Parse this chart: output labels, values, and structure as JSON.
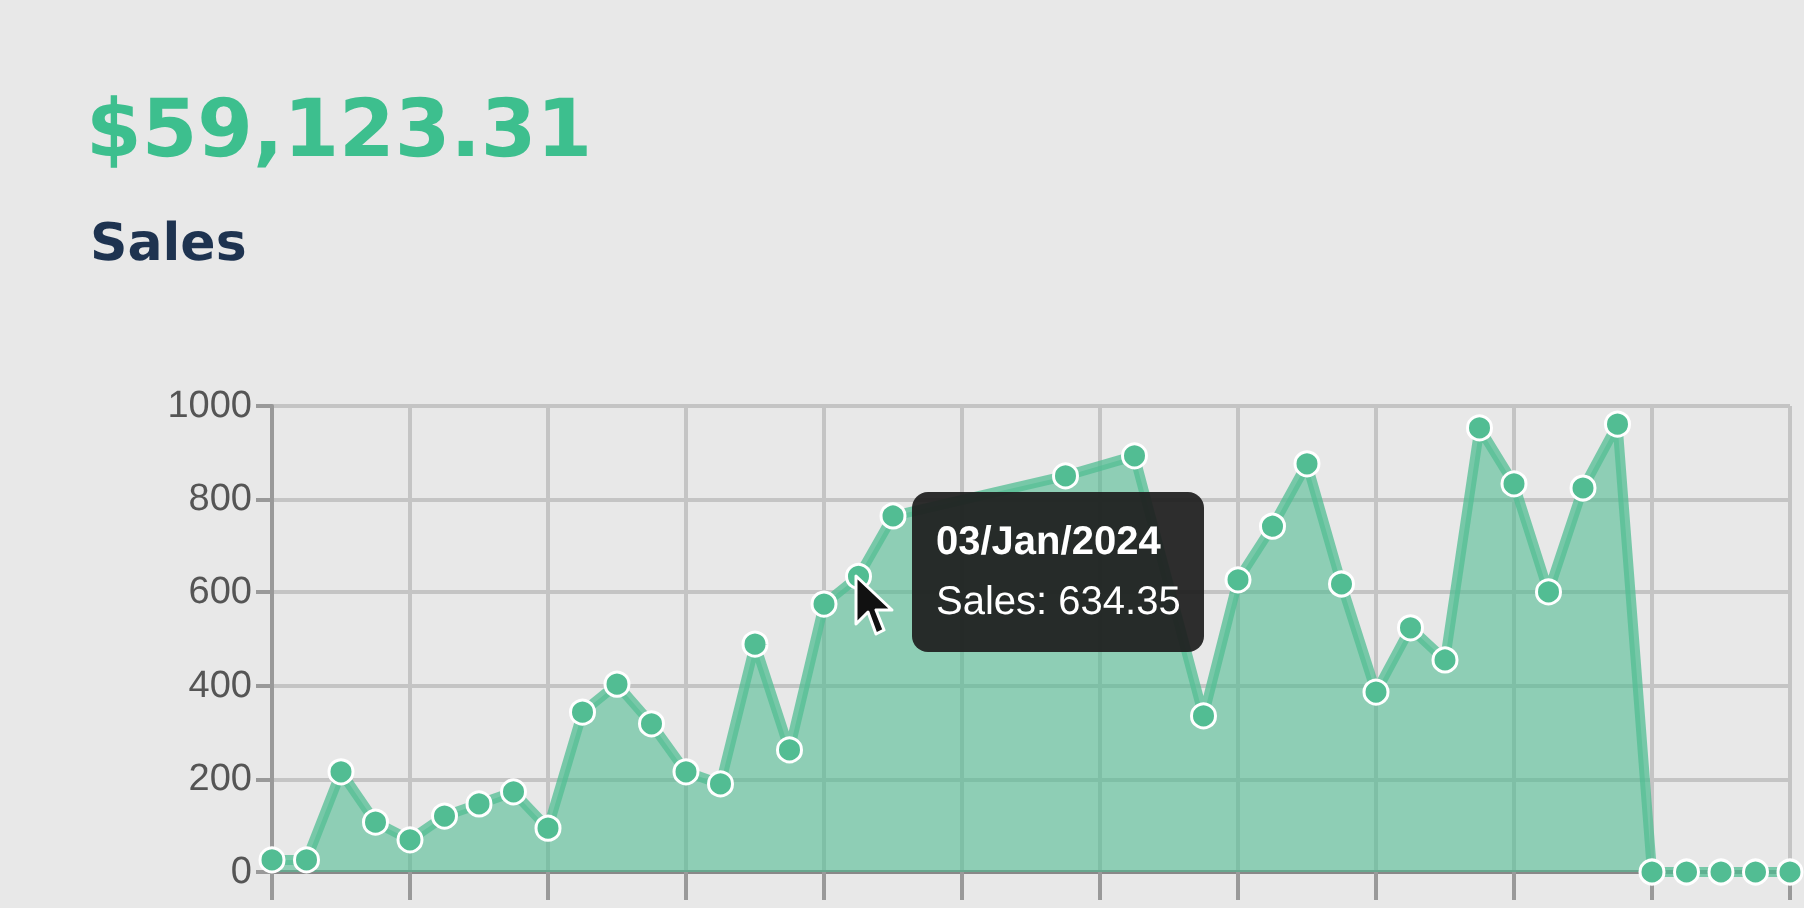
{
  "chart_data": {
    "type": "area",
    "title": "$59,123.31",
    "subtitle": "Sales",
    "categories": [
      null,
      null,
      null,
      null,
      null,
      null,
      null,
      null,
      null,
      null,
      null,
      null,
      null,
      null,
      null,
      null,
      null,
      null,
      null,
      null,
      null,
      null,
      null,
      null,
      null,
      null,
      null,
      null,
      null,
      null,
      null,
      null,
      null,
      null,
      null,
      null,
      null,
      null,
      null,
      null,
      null,
      null,
      null,
      null,
      null
    ],
    "series": [
      {
        "color": "#52bd93",
        "values": [
          26,
          26,
          215,
          107,
          69,
          120,
          146,
          172,
          94,
          343,
          403,
          318,
          215,
          189,
          489,
          262,
          575,
          634.35,
          764,
          null,
          null,
          null,
          null,
          850,
          null,
          893,
          null,
          335,
          627,
          742,
          876,
          618,
          386,
          524,
          455,
          953,
          833,
          601,
          824,
          961,
          0,
          0,
          0,
          0,
          0
        ]
      }
    ],
    "annotations": [
      "03/Jan/2024",
      "Sales: 634.35"
    ],
    "ylim": [
      0,
      1000
    ],
    "yticks": [
      0,
      200,
      400,
      600,
      800,
      {
        "value": 1000,
        "label": "1000"
      }
    ],
    "grid": true,
    "marker": "circle",
    "line_style": "solid",
    "tick_labels": "y"
  }
}
